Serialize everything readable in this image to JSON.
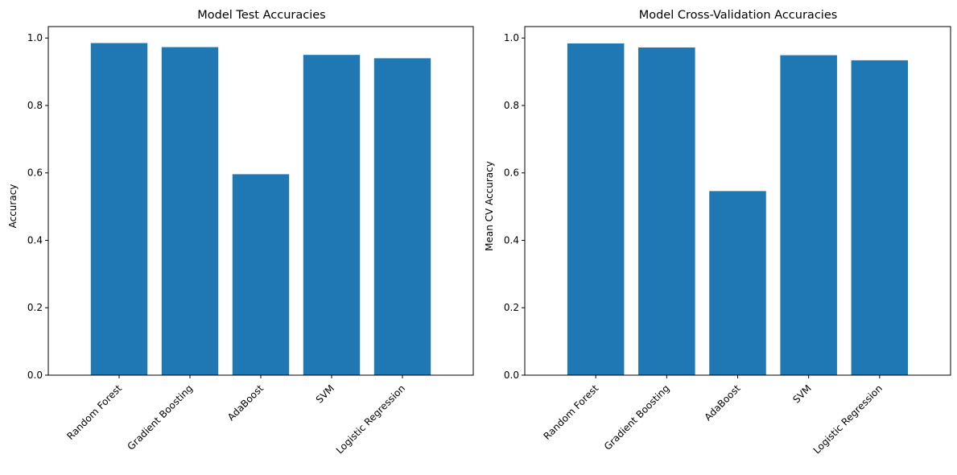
{
  "chart_data": [
    {
      "type": "bar",
      "title": "Model Test Accuracies",
      "xlabel": "",
      "ylabel": "Accuracy",
      "categories": [
        "Random Forest",
        "Gradient Boosting",
        "AdaBoost",
        "SVM",
        "Logistic Regression"
      ],
      "values": [
        0.985,
        0.973,
        0.596,
        0.95,
        0.94
      ],
      "ylim": [
        0,
        1.034
      ],
      "yticks": [
        "0.0",
        "0.2",
        "0.4",
        "0.6",
        "0.8",
        "1.0"
      ],
      "grid": false,
      "bar_color": "#1f77b4"
    },
    {
      "type": "bar",
      "title": "Model Cross-Validation Accuracies",
      "xlabel": "",
      "ylabel": "Mean CV Accuracy",
      "categories": [
        "Random Forest",
        "Gradient Boosting",
        "AdaBoost",
        "SVM",
        "Logistic Regression"
      ],
      "values": [
        0.984,
        0.972,
        0.546,
        0.949,
        0.934
      ],
      "ylim": [
        0,
        1.034
      ],
      "yticks": [
        "0.0",
        "0.2",
        "0.4",
        "0.6",
        "0.8",
        "1.0"
      ],
      "grid": false,
      "bar_color": "#1f77b4"
    }
  ]
}
